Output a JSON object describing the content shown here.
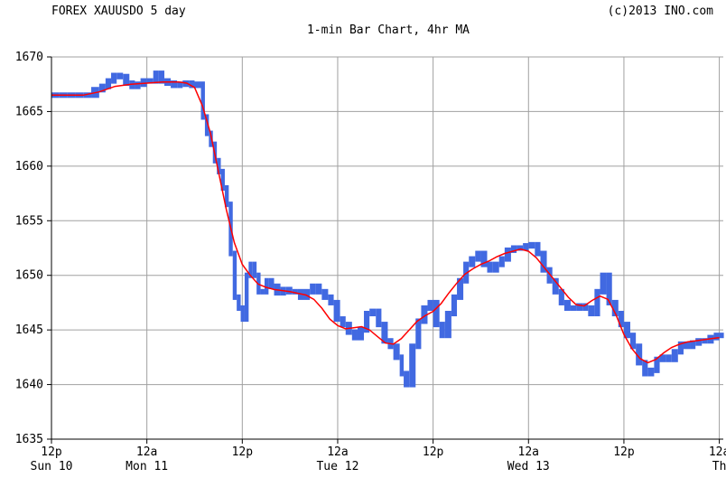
{
  "header": {
    "left": "FOREX XAUUSDO 5 day",
    "right": "(c)2013 INO.com",
    "subtitle": "1-min Bar Chart, 4hr MA"
  },
  "colors": {
    "price_bars": "#4169e1",
    "moving_average": "#ff0000",
    "grid": "#a0a0a0",
    "axis": "#000000",
    "background": "#ffffff"
  },
  "chart_data": {
    "type": "bar",
    "title": "FOREX XAUUSDO 5 day",
    "subtitle": "1-min Bar Chart, 4hr MA",
    "xlabel": "",
    "ylabel": "",
    "ylim": [
      1635,
      1670
    ],
    "yticks": [
      1635,
      1640,
      1645,
      1650,
      1655,
      1660,
      1665,
      1670
    ],
    "xlim_hours": [
      0,
      84.5
    ],
    "x_tick_hours": [
      0,
      12,
      24,
      36,
      48,
      60,
      72,
      84
    ],
    "x_tick_labels": [
      {
        "top": "12p",
        "bottom": "Sun 10"
      },
      {
        "top": "12a",
        "bottom": "Mon 11"
      },
      {
        "top": "12p",
        "bottom": ""
      },
      {
        "top": "12a",
        "bottom": "Tue 12"
      },
      {
        "top": "12p",
        "bottom": ""
      },
      {
        "top": "12a",
        "bottom": "Wed 13"
      },
      {
        "top": "12p",
        "bottom": ""
      },
      {
        "top": "12a",
        "bottom": "Th"
      }
    ],
    "grid": true,
    "series": [
      {
        "name": "1-min bars",
        "style": "bars",
        "points": [
          [
            0,
            1666.5
          ],
          [
            1,
            1666.5
          ],
          [
            2,
            1666.5
          ],
          [
            3,
            1666.5
          ],
          [
            4,
            1666.5
          ],
          [
            5,
            1667
          ],
          [
            6,
            1667.3
          ],
          [
            6.8,
            1667.8
          ],
          [
            7.5,
            1668.3
          ],
          [
            8.2,
            1668.2
          ],
          [
            9,
            1667.6
          ],
          [
            9.8,
            1667.3
          ],
          [
            10.5,
            1667.5
          ],
          [
            11.2,
            1667.8
          ],
          [
            12,
            1667.8
          ],
          [
            12.8,
            1668.5
          ],
          [
            13.5,
            1667.8
          ],
          [
            14.2,
            1667.6
          ],
          [
            15,
            1667.4
          ],
          [
            15.8,
            1667.5
          ],
          [
            16.5,
            1667.6
          ],
          [
            17.3,
            1667.4
          ],
          [
            18,
            1667.5
          ],
          [
            18.8,
            1664.5
          ],
          [
            19.3,
            1663
          ],
          [
            19.8,
            1662
          ],
          [
            20.3,
            1660.5
          ],
          [
            20.8,
            1659.5
          ],
          [
            21.3,
            1658
          ],
          [
            21.8,
            1656.5
          ],
          [
            22.3,
            1652
          ],
          [
            22.8,
            1648
          ],
          [
            23.3,
            1647
          ],
          [
            23.8,
            1646
          ],
          [
            24.3,
            1650
          ],
          [
            24.8,
            1651
          ],
          [
            25.3,
            1650
          ],
          [
            25.8,
            1648.5
          ],
          [
            26.3,
            1648.5
          ],
          [
            26.8,
            1649.5
          ],
          [
            27.3,
            1649
          ],
          [
            28,
            1648.4
          ],
          [
            28.8,
            1648.7
          ],
          [
            29.5,
            1648.5
          ],
          [
            30.3,
            1648.5
          ],
          [
            31,
            1648
          ],
          [
            31.8,
            1648.5
          ],
          [
            32.5,
            1649
          ],
          [
            33.2,
            1648.5
          ],
          [
            34,
            1648
          ],
          [
            34.8,
            1647.5
          ],
          [
            35.5,
            1646
          ],
          [
            36.3,
            1645.5
          ],
          [
            37,
            1644.8
          ],
          [
            37.8,
            1644.3
          ],
          [
            38.5,
            1645
          ],
          [
            39.3,
            1646.5
          ],
          [
            40,
            1646.7
          ],
          [
            40.8,
            1645.5
          ],
          [
            41.5,
            1644
          ],
          [
            42.3,
            1643.5
          ],
          [
            43,
            1642.5
          ],
          [
            43.8,
            1641
          ],
          [
            44.3,
            1640
          ],
          [
            45,
            1643.5
          ],
          [
            45.8,
            1645.8
          ],
          [
            46.5,
            1647
          ],
          [
            47.3,
            1647.5
          ],
          [
            48,
            1645.5
          ],
          [
            48.8,
            1644.5
          ],
          [
            49.5,
            1646.5
          ],
          [
            50.3,
            1648
          ],
          [
            51,
            1649.5
          ],
          [
            51.8,
            1651
          ],
          [
            52.5,
            1651.5
          ],
          [
            53.3,
            1652
          ],
          [
            54,
            1651
          ],
          [
            54.8,
            1650.5
          ],
          [
            55.5,
            1651
          ],
          [
            56.3,
            1651.5
          ],
          [
            57,
            1652.3
          ],
          [
            57.8,
            1652.5
          ],
          [
            58.5,
            1652.5
          ],
          [
            59.3,
            1652.7
          ],
          [
            60,
            1652.8
          ],
          [
            60.8,
            1652
          ],
          [
            61.5,
            1650.5
          ],
          [
            62.3,
            1649.5
          ],
          [
            63,
            1648.5
          ],
          [
            63.8,
            1647.5
          ],
          [
            64.5,
            1647
          ],
          [
            65.3,
            1647
          ],
          [
            66,
            1647.2
          ],
          [
            66.8,
            1647
          ],
          [
            67.5,
            1646.5
          ],
          [
            68.3,
            1648.5
          ],
          [
            69,
            1650
          ],
          [
            69.8,
            1647.5
          ],
          [
            70.5,
            1646.5
          ],
          [
            71.3,
            1645.5
          ],
          [
            72,
            1644.5
          ],
          [
            72.8,
            1643.5
          ],
          [
            73.5,
            1642
          ],
          [
            74.3,
            1641
          ],
          [
            75,
            1641.3
          ],
          [
            75.8,
            1642.3
          ],
          [
            76.5,
            1642.5
          ],
          [
            77.3,
            1642.3
          ],
          [
            78,
            1643
          ],
          [
            78.8,
            1643.7
          ],
          [
            79.5,
            1643.5
          ],
          [
            80.3,
            1643.8
          ],
          [
            81,
            1644
          ],
          [
            81.8,
            1644
          ],
          [
            82.5,
            1644.3
          ],
          [
            83.3,
            1644.5
          ],
          [
            84,
            1644.5
          ]
        ]
      },
      {
        "name": "4hr MA",
        "style": "line",
        "points": [
          [
            0,
            1666.5
          ],
          [
            4,
            1666.5
          ],
          [
            6,
            1666.8
          ],
          [
            8,
            1667.3
          ],
          [
            10,
            1667.5
          ],
          [
            12,
            1667.6
          ],
          [
            14,
            1667.7
          ],
          [
            16,
            1667.7
          ],
          [
            17,
            1667.6
          ],
          [
            18,
            1667.2
          ],
          [
            19,
            1665.5
          ],
          [
            20,
            1663
          ],
          [
            21,
            1659.5
          ],
          [
            22,
            1656
          ],
          [
            23,
            1653
          ],
          [
            24,
            1651
          ],
          [
            25,
            1650
          ],
          [
            26,
            1649.2
          ],
          [
            27,
            1648.9
          ],
          [
            28,
            1648.7
          ],
          [
            30,
            1648.5
          ],
          [
            32,
            1648.2
          ],
          [
            33,
            1647.8
          ],
          [
            34,
            1647
          ],
          [
            35,
            1646
          ],
          [
            36,
            1645.4
          ],
          [
            37,
            1645.1
          ],
          [
            38,
            1645.2
          ],
          [
            39,
            1645.3
          ],
          [
            40,
            1645
          ],
          [
            41,
            1644.4
          ],
          [
            42,
            1643.8
          ],
          [
            43,
            1643.7
          ],
          [
            44,
            1644.2
          ],
          [
            45,
            1645
          ],
          [
            46,
            1645.8
          ],
          [
            47,
            1646.3
          ],
          [
            48,
            1646.7
          ],
          [
            49,
            1647.4
          ],
          [
            50,
            1648.4
          ],
          [
            51,
            1649.3
          ],
          [
            52,
            1650.1
          ],
          [
            53,
            1650.6
          ],
          [
            54,
            1651
          ],
          [
            55,
            1651.3
          ],
          [
            56,
            1651.7
          ],
          [
            57,
            1652
          ],
          [
            58,
            1652.2
          ],
          [
            59,
            1652.4
          ],
          [
            60,
            1652.2
          ],
          [
            61,
            1651.6
          ],
          [
            62,
            1650.7
          ],
          [
            63,
            1649.8
          ],
          [
            64,
            1648.9
          ],
          [
            65,
            1648
          ],
          [
            66,
            1647.3
          ],
          [
            67,
            1647.2
          ],
          [
            68,
            1647.7
          ],
          [
            69,
            1648.1
          ],
          [
            70,
            1647.8
          ],
          [
            71,
            1646.4
          ],
          [
            72,
            1644.6
          ],
          [
            73,
            1643.3
          ],
          [
            74,
            1642.4
          ],
          [
            75,
            1642
          ],
          [
            76,
            1642.3
          ],
          [
            77,
            1642.9
          ],
          [
            78,
            1643.4
          ],
          [
            79,
            1643.7
          ],
          [
            80,
            1643.9
          ],
          [
            81,
            1644
          ],
          [
            82,
            1644.1
          ],
          [
            83,
            1644.2
          ],
          [
            84,
            1644.3
          ]
        ]
      }
    ]
  }
}
